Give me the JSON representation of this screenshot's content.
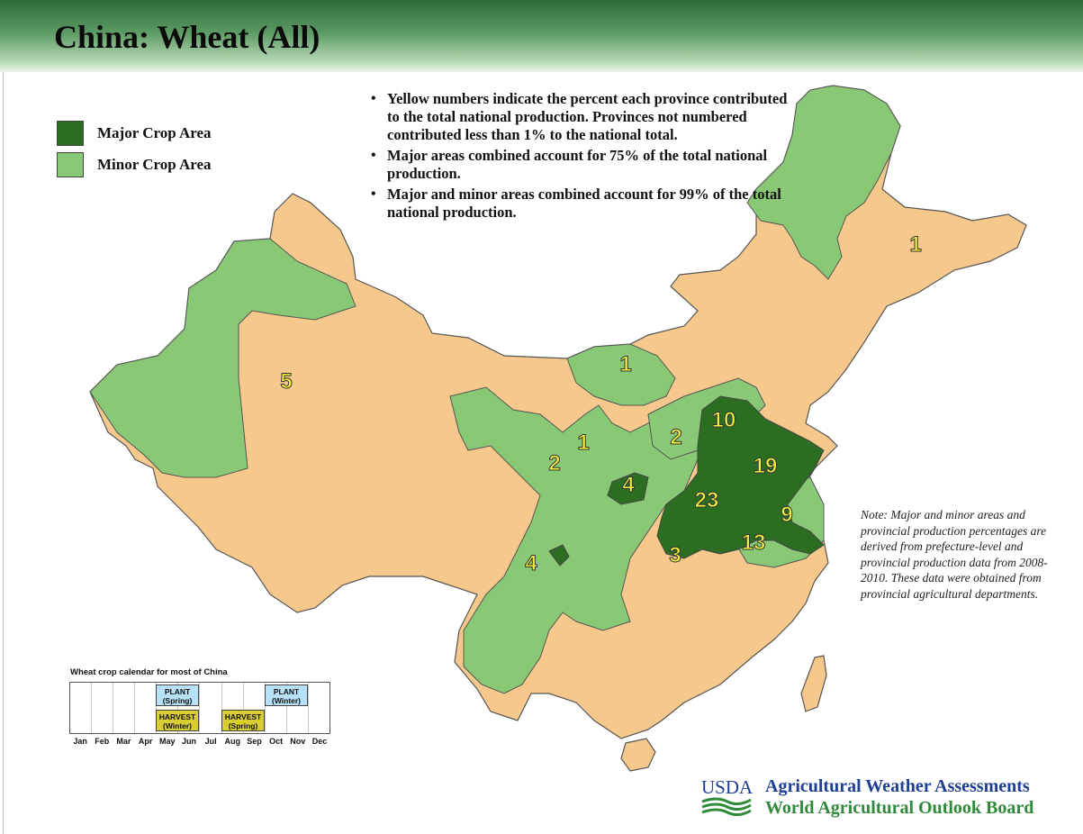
{
  "header": {
    "title": "China: Wheat (All)"
  },
  "legend": {
    "items": [
      {
        "label": "Major Crop Area",
        "color": "#2b6e22"
      },
      {
        "label": "Minor Crop Area",
        "color": "#89c976"
      }
    ],
    "non_crop_color": "#f6c88b"
  },
  "bullets": [
    "Yellow numbers indicate the percent each province contributed to the total national production.  Provinces not numbered contributed less than 1% to the national total.",
    "Major areas combined account for 75% of the total national production.",
    "Major and minor areas combined account for 99% of the total national production."
  ],
  "note": "Note:  Major and minor areas and provincial production percentages are derived from prefecture-level and provincial production data from 2008-2010. These data were obtained from provincial agricultural departments.",
  "province_percentages": [
    {
      "value": "1",
      "region": "northeast"
    },
    {
      "value": "5",
      "region": "xinjiang"
    },
    {
      "value": "1",
      "region": "inner-mongolia"
    },
    {
      "value": "1",
      "region": "ningxia"
    },
    {
      "value": "2",
      "region": "gansu"
    },
    {
      "value": "2",
      "region": "shanxi"
    },
    {
      "value": "10",
      "region": "hebei"
    },
    {
      "value": "19",
      "region": "shandong"
    },
    {
      "value": "4",
      "region": "shaanxi"
    },
    {
      "value": "23",
      "region": "henan"
    },
    {
      "value": "9",
      "region": "jiangsu"
    },
    {
      "value": "13",
      "region": "anhui"
    },
    {
      "value": "3",
      "region": "hubei"
    },
    {
      "value": "4",
      "region": "sichuan"
    }
  ],
  "calendar": {
    "title": "Wheat crop calendar for most of China",
    "months": [
      "Jan",
      "Feb",
      "Mar",
      "Apr",
      "May",
      "Jun",
      "Jul",
      "Aug",
      "Sep",
      "Oct",
      "Nov",
      "Dec"
    ],
    "events": [
      {
        "line1": "PLANT",
        "line2": "(Spring)",
        "type": "plant"
      },
      {
        "line1": "HARVEST",
        "line2": "(Winter)",
        "type": "harvest"
      },
      {
        "line1": "HARVEST",
        "line2": "(Spring)",
        "type": "harvest"
      },
      {
        "line1": "PLANT",
        "line2": "(Winter)",
        "type": "plant"
      }
    ]
  },
  "footer": {
    "logo_text": "USDA",
    "agency_line1": "Agricultural Weather Assessments",
    "agency_line2": "World Agricultural Outlook Board"
  },
  "colors": {
    "number_fill": "#f5f03a",
    "border": "#555555"
  }
}
